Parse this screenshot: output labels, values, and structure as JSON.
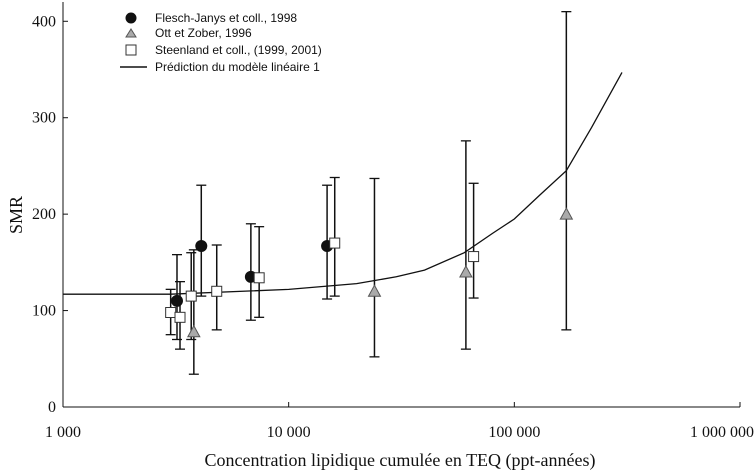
{
  "chart_data": {
    "type": "scatter",
    "title": "",
    "xlabel": "Concentration lipidique cumulée en TEQ (ppt-années)",
    "ylabel": "SMR",
    "x_scale": "log",
    "xlim": [
      1000,
      1000000
    ],
    "ylim": [
      0,
      420
    ],
    "x_ticks": [
      1000,
      10000,
      100000,
      1000000
    ],
    "x_tick_labels": [
      "1 000",
      "10 000",
      "100 000",
      "1 000 000"
    ],
    "y_ticks": [
      0,
      100,
      200,
      300,
      400
    ],
    "y_tick_labels": [
      "0",
      "100",
      "200",
      "300",
      "400"
    ],
    "grid": false,
    "legend_position": "top-left",
    "series": [
      {
        "name": "Flesch-Janys et coll., 1998",
        "marker": "circle",
        "color": "#111111",
        "points": [
          {
            "x": 3200,
            "y": 110,
            "low": 70,
            "high": 158
          },
          {
            "x": 4100,
            "y": 167,
            "low": 115,
            "high": 230
          },
          {
            "x": 6800,
            "y": 135,
            "low": 90,
            "high": 190
          },
          {
            "x": 14800,
            "y": 167,
            "low": 112,
            "high": 230
          }
        ]
      },
      {
        "name": "Ott et Zober, 1996",
        "marker": "triangle",
        "color": "#aaaaaa",
        "points": [
          {
            "x": 3800,
            "y": 78,
            "low": 34,
            "high": 163
          },
          {
            "x": 24000,
            "y": 120,
            "low": 52,
            "high": 237
          },
          {
            "x": 61000,
            "y": 140,
            "low": 60,
            "high": 276
          },
          {
            "x": 170000,
            "y": 200,
            "low": 80,
            "high": 410
          }
        ]
      },
      {
        "name": "Steenland et coll., (1999, 2001)",
        "marker": "square",
        "color": "#ffffff",
        "points": [
          {
            "x": 3000,
            "y": 98,
            "low": 75,
            "high": 122
          },
          {
            "x": 3300,
            "y": 93,
            "low": 60,
            "high": 130
          },
          {
            "x": 3700,
            "y": 115,
            "low": 70,
            "high": 160
          },
          {
            "x": 4800,
            "y": 120,
            "low": 80,
            "high": 168
          },
          {
            "x": 7400,
            "y": 134,
            "low": 93,
            "high": 187
          },
          {
            "x": 16000,
            "y": 170,
            "low": 115,
            "high": 238
          },
          {
            "x": 66000,
            "y": 156,
            "low": 113,
            "high": 232
          }
        ]
      }
    ],
    "model_line": {
      "name": "Prédiction du modèle linéaire 1",
      "points": [
        [
          1000,
          117
        ],
        [
          3000,
          117
        ],
        [
          10000,
          122
        ],
        [
          20000,
          128
        ],
        [
          30000,
          135
        ],
        [
          40000,
          142
        ],
        [
          60000,
          160
        ],
        [
          80000,
          180
        ],
        [
          100000,
          195
        ],
        [
          130000,
          220
        ],
        [
          170000,
          245
        ],
        [
          220000,
          290
        ],
        [
          300000,
          347
        ]
      ]
    }
  }
}
